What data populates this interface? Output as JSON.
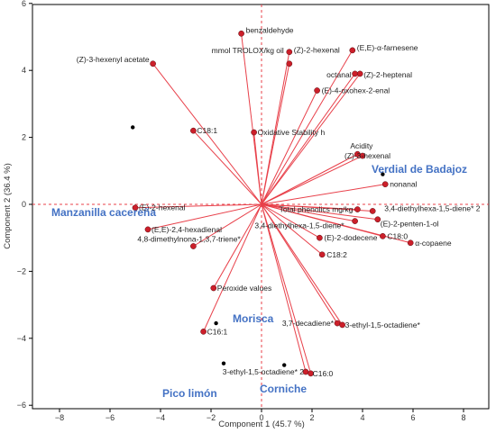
{
  "chart_data": {
    "type": "scatter",
    "subtype": "PCA biplot",
    "title": "",
    "xlabel": "Component 1 (45.7 %)",
    "ylabel": "Component 2 (36.4 %)",
    "xlim": [
      -9,
      9
    ],
    "ylim": [
      -6,
      6
    ],
    "xticks": [
      "−8",
      "−6",
      "−4",
      "−2",
      "0",
      "2",
      "4",
      "6",
      "8"
    ],
    "yticks": [
      "−6",
      "−4",
      "−2",
      "0",
      "2",
      "4",
      "6"
    ],
    "colors": {
      "vector": "#E8404A",
      "loading_point": "#CC1F2A",
      "cultivar_point": "#000000",
      "cultivar_label": "#4472C4",
      "reference_line": "#E8404A"
    },
    "loadings": [
      {
        "label": "benzaldehyde",
        "x": -0.8,
        "y": 5.1
      },
      {
        "label": "(Z)-3-hexenyl acetate",
        "x": -4.3,
        "y": 4.2
      },
      {
        "label": "mmol TROLOX/kg oil",
        "x": 1.1,
        "y": 4.2
      },
      {
        "label": "(Z)-2-hexenal",
        "x": 1.1,
        "y": 4.55
      },
      {
        "label": "(E,E)-α-farnesene",
        "x": 3.6,
        "y": 4.6
      },
      {
        "label": "octanal",
        "x": 3.7,
        "y": 3.9
      },
      {
        "label": "(Z)-2-heptenal",
        "x": 3.9,
        "y": 3.9
      },
      {
        "label": "(E)-4-oxohex-2-enal",
        "x": 2.2,
        "y": 3.4
      },
      {
        "label": "C18:1",
        "x": -2.7,
        "y": 2.2
      },
      {
        "label": "Oxidative Stability h",
        "x": -0.3,
        "y": 2.15
      },
      {
        "label": "Acidity",
        "x": 3.8,
        "y": 1.5
      },
      {
        "label": "(Z)-3-hexenal",
        "x": 4.0,
        "y": 1.45
      },
      {
        "label": "nonanal",
        "x": 4.9,
        "y": 0.6
      },
      {
        "label": "(E)-2-hexenal",
        "x": -5.0,
        "y": -0.1
      },
      {
        "label": "Total phenolics mg/kg",
        "x": 3.8,
        "y": -0.15
      },
      {
        "label": "3,4-diethylhexa-1,5-diene* 2",
        "x": 4.4,
        "y": -0.2
      },
      {
        "label": "(E)-2-penten-1-ol",
        "x": 4.6,
        "y": -0.45
      },
      {
        "label": "3,4-diethylhexa-1,5-diene*",
        "x": 3.7,
        "y": -0.5
      },
      {
        "label": "(E,E)-2,4-hexadienal",
        "x": -4.5,
        "y": -0.75
      },
      {
        "label": "C18:0",
        "x": 4.8,
        "y": -0.95
      },
      {
        "label": "(E)-2-dodecene",
        "x": 2.3,
        "y": -1.0
      },
      {
        "label": "α-copaene",
        "x": 5.9,
        "y": -1.15
      },
      {
        "label": "4,8-dimethylnona-1,3,7-triene*",
        "x": -2.7,
        "y": -1.25
      },
      {
        "label": "C18:2",
        "x": 2.4,
        "y": -1.5
      },
      {
        "label": "Peroxide values",
        "x": -1.9,
        "y": -2.5
      },
      {
        "label": "3,7-decadiene*",
        "x": 3.0,
        "y": -3.55
      },
      {
        "label": "3-ethyl-1,5-octadiene*",
        "x": 3.2,
        "y": -3.6
      },
      {
        "label": "C16:1",
        "x": -2.3,
        "y": -3.8
      },
      {
        "label": "3-ethyl-1,5-octadiene* 2",
        "x": 1.75,
        "y": -5.0
      },
      {
        "label": "C16:0",
        "x": 1.95,
        "y": -5.05
      }
    ],
    "cultivars": [
      {
        "label": "Manzanilla cacereña",
        "x": -5.1,
        "y": 2.3
      },
      {
        "label": "Verdial de Badajoz",
        "x": 4.8,
        "y": 0.9
      },
      {
        "label": "Morisca",
        "x": -1.8,
        "y": -3.55
      },
      {
        "label": "Pico limón",
        "x": -1.5,
        "y": -4.75
      },
      {
        "label": "Corniche",
        "x": 0.9,
        "y": -4.8
      }
    ]
  }
}
